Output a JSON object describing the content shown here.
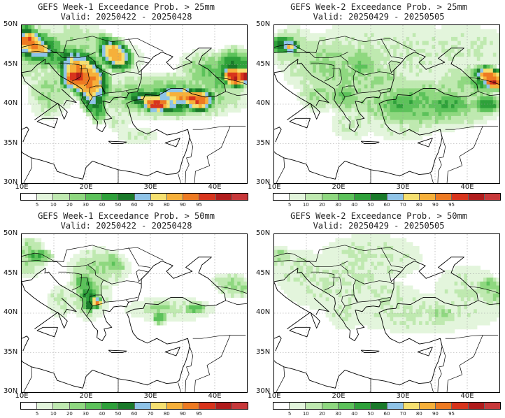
{
  "colorbar": {
    "colors": [
      "#ffffff",
      "#e3f5dc",
      "#bfe9b0",
      "#8fd880",
      "#5cc25a",
      "#2ea13a",
      "#1a7a2a",
      "#8fc4e8",
      "#f5e070",
      "#f6b03a",
      "#ee7a22",
      "#d8341c",
      "#b11c1c",
      "#c8383a"
    ],
    "ticks": [
      "5",
      "10",
      "20",
      "30",
      "40",
      "50",
      "60",
      "70",
      "80",
      "90",
      "95"
    ]
  },
  "axes": {
    "lat_labels": [
      "50N",
      "45N",
      "40N",
      "35N",
      "30N"
    ],
    "lon_labels": [
      "10E",
      "20E",
      "30E",
      "40E"
    ]
  },
  "panels": [
    {
      "title": "GEFS Week-1 Exceedance Prob. > 25mm",
      "valid": "Valid: 20250422 - 20250428",
      "field": "w1_25"
    },
    {
      "title": "GEFS Week-2 Exceedance Prob. > 25mm",
      "valid": "Valid: 20250429 - 20250505",
      "field": "w2_25"
    },
    {
      "title": "GEFS Week-1 Exceedance Prob. > 50mm",
      "valid": "Valid: 20250422 - 20250428",
      "field": "w1_50"
    },
    {
      "title": "GEFS Week-2 Exceedance Prob. > 50mm",
      "valid": "Valid: 20250429 - 20250505",
      "field": "w2_50"
    }
  ]
}
